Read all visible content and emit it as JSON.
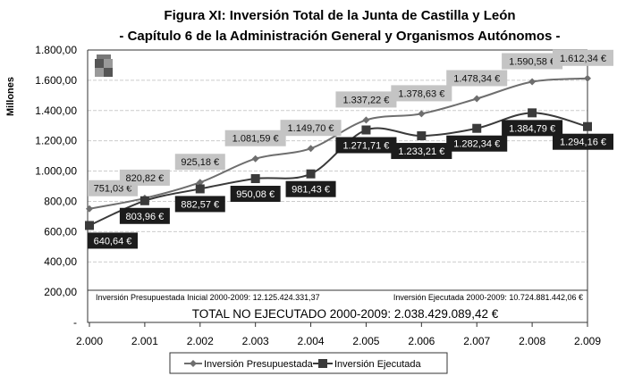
{
  "chart_data": {
    "type": "line",
    "title": "Figura XI: Inversión Total de la Junta de Castilla y León",
    "subtitle": "- Capítulo 6 de la Administración General y Organismos Autónomos -",
    "xlabel": "",
    "ylabel": "Millones",
    "x": [
      "2.000",
      "2.001",
      "2.002",
      "2.003",
      "2.004",
      "2.005",
      "2.006",
      "2.007",
      "2.008",
      "2.009"
    ],
    "yticks": [
      "-",
      "200,00",
      "400,00",
      "600,00",
      "800,00",
      "1.000,00",
      "1.200,00",
      "1.400,00",
      "1.600,00",
      "1.800,00"
    ],
    "ylim": [
      0,
      1800
    ],
    "grid": true,
    "legend_position": "bottom",
    "series": [
      {
        "name": "Inversión Presupuestada",
        "color": "#6e6e6e",
        "marker": "diamond",
        "values": [
          751.03,
          820.82,
          925.18,
          1081.59,
          1149.7,
          1337.22,
          1378.63,
          1478.34,
          1590.58,
          1612.34
        ],
        "labels": [
          "751,03 €",
          "820,82 €",
          "925,18 €",
          "1.081,59 €",
          "1.149,70 €",
          "1.337,22 €",
          "1.378,63 €",
          "1.478,34 €",
          "1.590,58 €",
          "1.612,34 €"
        ]
      },
      {
        "name": "Inversión Ejecutada",
        "color": "#3a3a3a",
        "marker": "square",
        "values": [
          640.64,
          803.96,
          882.57,
          950.08,
          981.43,
          1271.71,
          1233.21,
          1282.34,
          1384.79,
          1294.16
        ],
        "labels": [
          "640,64 €",
          "803,96 €",
          "882,57 €",
          "950,08 €",
          "981,43 €",
          "1.271,71 €",
          "1.233,21 €",
          "1.282,34 €",
          "1.384,79 €",
          "1.294,16 €"
        ]
      }
    ],
    "annotations": {
      "presupuestada_total": "Inversión Presupuestada Inicial 2000-2009: 12.125.424.331,37",
      "ejecutada_total": "Inversión Ejecutada 2000-2009: 10.724.881.442,06 €",
      "no_ejecutado": "TOTAL NO EJECUTADO 2000-2009: 2.038.429.089,42 €"
    }
  }
}
